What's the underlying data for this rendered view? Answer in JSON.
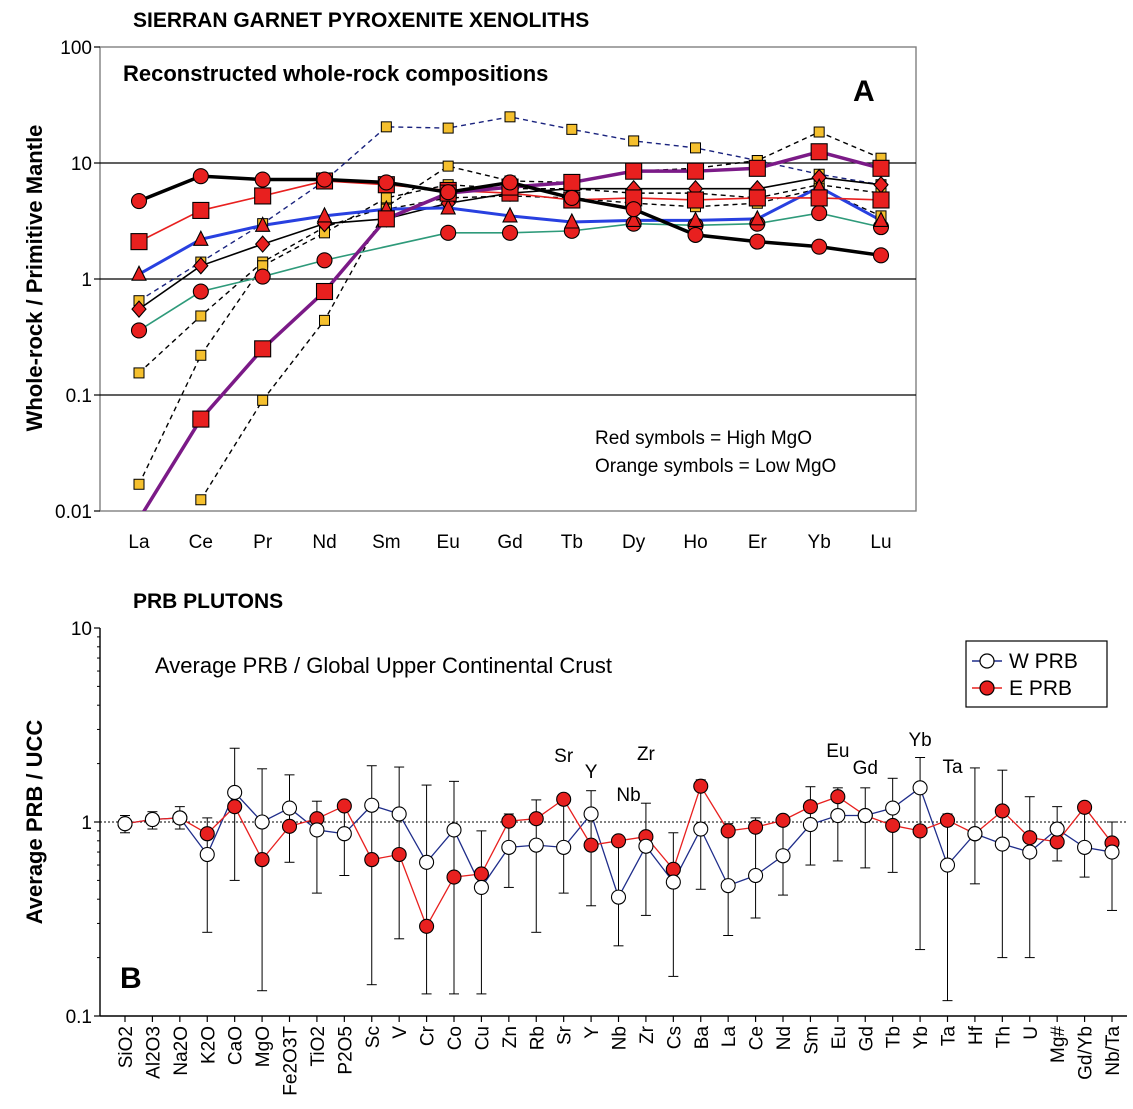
{
  "chart_data": [
    {
      "type": "line",
      "title": "SIERRAN GARNET PYROXENITE XENOLITHS",
      "subtitle": "Reconstructed whole-rock compositions",
      "panel_label": "A",
      "ylabel": "Whole-rock / Primitive Mantle",
      "xlabel": "",
      "yscale": "log",
      "ylim": [
        0.01,
        100
      ],
      "yticks": [
        "0.01",
        "0.1",
        "1",
        "10",
        "100"
      ],
      "categories": [
        "La",
        "Ce",
        "Pr",
        "Nd",
        "Sm",
        "Eu",
        "Gd",
        "Tb",
        "Dy",
        "Ho",
        "Er",
        "Yb",
        "Lu"
      ],
      "notes": [
        "Red symbols = High MgO",
        "Orange symbols = Low MgO"
      ],
      "colors": {
        "red": "#e8201f",
        "orange": "#f5c02e",
        "purple": "#7b1a87",
        "blue": "#2840e0",
        "teal": "#2e9a7a",
        "black": "#000000",
        "navy": "#1a237e"
      },
      "series": [
        {
          "color": "black",
          "marker": "circle-red",
          "width": 3.5,
          "dash": false,
          "values": [
            4.7,
            7.7,
            7.2,
            7.2,
            6.8,
            5.6,
            6.8,
            5.0,
            4.0,
            2.4,
            2.1,
            1.9,
            1.6
          ]
        },
        {
          "color": "red",
          "marker": "square-red",
          "width": 1.6,
          "dash": false,
          "values": [
            2.1,
            3.9,
            5.2,
            7.0,
            6.5,
            5.8,
            5.5,
            4.8,
            5.0,
            4.8,
            5.0,
            5.0,
            4.8
          ]
        },
        {
          "color": "blue",
          "marker": "triangle-red",
          "width": 3,
          "dash": false,
          "values": [
            1.1,
            2.2,
            2.9,
            3.5,
            4.0,
            4.1,
            3.5,
            3.1,
            3.2,
            3.2,
            3.3,
            6.2,
            3.2
          ]
        },
        {
          "color": "black",
          "marker": "diamond-red",
          "width": 1.6,
          "dash": false,
          "values": [
            0.55,
            1.3,
            2.0,
            3.0,
            3.3,
            4.5,
            5.5,
            6.0,
            6.0,
            6.0,
            6.0,
            7.5,
            6.5
          ]
        },
        {
          "color": "teal",
          "marker": "circle-red",
          "width": 1.6,
          "dash": false,
          "values": [
            0.36,
            0.78,
            1.05,
            1.45,
            null,
            2.5,
            2.5,
            2.6,
            3.0,
            2.9,
            3.0,
            3.7,
            2.8
          ]
        },
        {
          "color": "purple",
          "marker": "square-red",
          "width": 3.5,
          "dash": false,
          "values": [
            0.0085,
            0.062,
            0.25,
            0.78,
            3.3,
            5.5,
            6.2,
            6.8,
            8.5,
            8.5,
            9.0,
            12.5,
            9.0
          ]
        },
        {
          "color": "navy",
          "marker": "square-orange",
          "width": 1.4,
          "dash": true,
          "values": [
            0.65,
            1.4,
            3.0,
            7.0,
            20.5,
            20,
            25,
            19.5,
            15.5,
            13.5,
            10.5,
            8.0,
            6.5
          ]
        },
        {
          "color": "black",
          "marker": "square-orange",
          "width": 1.4,
          "dash": true,
          "values": [
            0.155,
            0.48,
            1.4,
            2.8,
            4.2,
            9.4,
            7.0,
            6.8,
            8.5,
            9.0,
            10.5,
            18.5,
            11.0
          ]
        },
        {
          "color": "black",
          "marker": "square-orange",
          "width": 1.4,
          "dash": true,
          "values": [
            0.017,
            0.22,
            1.3,
            2.5,
            5.0,
            6.5,
            6.0,
            6.0,
            5.5,
            5.5,
            5.0,
            6.5,
            5.5
          ]
        },
        {
          "color": "black",
          "marker": "square-orange",
          "width": 1.4,
          "dash": true,
          "values": [
            null,
            0.0125,
            0.09,
            0.44,
            4.0,
            5.0,
            5.2,
            5.0,
            4.5,
            4.2,
            4.5,
            6.0,
            3.5
          ]
        }
      ]
    },
    {
      "type": "line",
      "title": "PRB PLUTONS",
      "subtitle": "Average PRB / Global Upper Continental Crust",
      "panel_label": "B",
      "ylabel": "Average PRB / UCC",
      "xlabel": "",
      "yscale": "log",
      "ylim": [
        0.1,
        10
      ],
      "yticks": [
        "0.1",
        "1",
        "10"
      ],
      "reference_line": 1,
      "categories": [
        "SiO2",
        "Al2O3",
        "Na2O",
        "K2O",
        "CaO",
        "MgO",
        "Fe2O3T",
        "TiO2",
        "P2O5",
        "Sc",
        "V",
        "Cr",
        "Co",
        "Cu",
        "Zn",
        "Rb",
        "Sr",
        "Y",
        "Nb",
        "Zr",
        "Cs",
        "Ba",
        "La",
        "Ce",
        "Nd",
        "Sm",
        "Eu",
        "Gd",
        "Tb",
        "Yb",
        "Ta",
        "Hf",
        "Th",
        "U",
        "Mg#",
        "Gd/Yb",
        "Nb/Ta"
      ],
      "annotations": [
        {
          "text": "Sr",
          "category": "Sr"
        },
        {
          "text": "Y",
          "category": "Y"
        },
        {
          "text": "Nb",
          "category": "Nb"
        },
        {
          "text": "Zr",
          "category": "Zr"
        },
        {
          "text": "Eu",
          "category": "Eu"
        },
        {
          "text": "Gd",
          "category": "Gd"
        },
        {
          "text": "Yb",
          "category": "Yb"
        },
        {
          "text": "Ta",
          "category": "Ta"
        }
      ],
      "series": [
        {
          "name": "W PRB",
          "line_color": "#1f2d8a",
          "marker": "open-circle",
          "values": [
            0.98,
            1.03,
            1.05,
            0.68,
            1.42,
            1.0,
            1.18,
            0.91,
            0.87,
            1.22,
            1.1,
            0.62,
            0.91,
            0.46,
            0.74,
            0.76,
            0.74,
            1.1,
            0.41,
            0.75,
            0.49,
            0.92,
            0.47,
            0.53,
            0.67,
            0.97,
            1.08,
            1.08,
            1.18,
            1.5,
            0.6,
            0.87,
            0.77,
            0.7,
            0.92,
            0.74,
            0.7
          ],
          "err_hi": [
            1.08,
            1.13,
            1.2,
            1.05,
            2.4,
            1.88,
            1.75,
            1.28,
            1.22,
            1.95,
            1.92,
            1.55,
            1.62,
            0.9,
            1.1,
            1.3,
            1.25,
            1.45,
            0.78,
            1.25,
            0.88,
            1.65,
            0.98,
            1.05,
            1.05,
            1.52,
            1.5,
            1.5,
            1.68,
            2.15,
            1.1,
            1.9,
            1.85,
            1.35,
            1.2,
            1.18,
            1.0
          ],
          "err_lo": [
            0.88,
            0.92,
            0.92,
            0.27,
            0.5,
            0.135,
            0.62,
            0.43,
            0.53,
            0.145,
            0.25,
            0.13,
            0.13,
            0.13,
            0.46,
            0.27,
            0.43,
            0.37,
            0.23,
            0.33,
            0.16,
            0.45,
            0.26,
            0.32,
            0.42,
            0.6,
            0.63,
            0.58,
            0.55,
            0.22,
            0.12,
            0.48,
            0.2,
            0.2,
            0.63,
            0.52,
            0.35
          ]
        },
        {
          "name": "E PRB",
          "line_color": "#e8201f",
          "marker": "filled-circle",
          "values": [
            0.98,
            1.03,
            1.05,
            0.87,
            1.2,
            0.64,
            0.95,
            1.04,
            1.21,
            0.64,
            0.68,
            0.29,
            0.52,
            0.54,
            1.01,
            1.04,
            1.31,
            0.76,
            0.8,
            0.84,
            0.57,
            1.53,
            0.9,
            0.94,
            1.02,
            1.2,
            1.35,
            1.08,
            0.96,
            0.9,
            1.02,
            0.87,
            1.14,
            0.83,
            0.79,
            1.19,
            0.78
          ]
        }
      ]
    }
  ]
}
